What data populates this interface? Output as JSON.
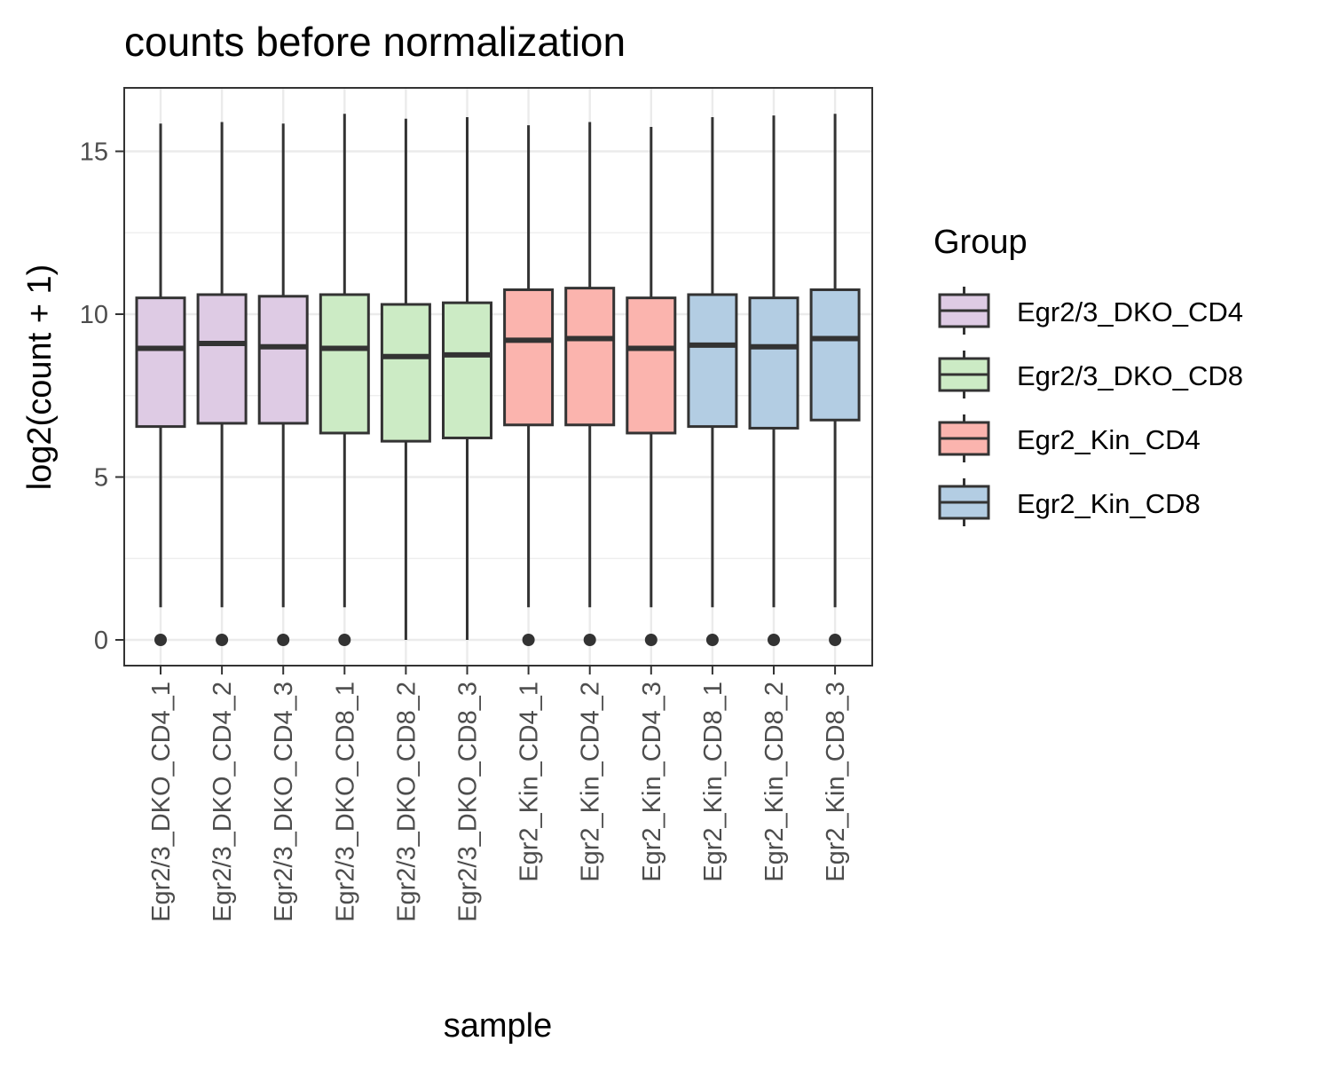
{
  "chart_data": {
    "type": "boxplot",
    "title": "counts before normalization",
    "xlabel": "sample",
    "ylabel": "log2(count + 1)",
    "ylim": [
      -0.8,
      17.0
    ],
    "yticks": [
      0,
      5,
      10,
      15
    ],
    "grid": true,
    "legend": {
      "title": "Group",
      "placement": "right",
      "entries": [
        {
          "name": "Egr2/3_DKO_CD4",
          "color": "#decbe4"
        },
        {
          "name": "Egr2/3_DKO_CD8",
          "color": "#ccebc5"
        },
        {
          "name": "Egr2_Kin_CD4",
          "color": "#fbb4ae"
        },
        {
          "name": "Egr2_Kin_CD8",
          "color": "#b3cde3"
        }
      ]
    },
    "samples": [
      {
        "label": "Egr2/3_DKO_CD4_1",
        "group": 0,
        "lower_whisker": 1.0,
        "q1": 6.55,
        "median": 8.95,
        "q3": 10.5,
        "upper_whisker": 15.85,
        "outliers": [
          0
        ]
      },
      {
        "label": "Egr2/3_DKO_CD4_2",
        "group": 0,
        "lower_whisker": 1.0,
        "q1": 6.65,
        "median": 9.1,
        "q3": 10.6,
        "upper_whisker": 15.9,
        "outliers": [
          0
        ]
      },
      {
        "label": "Egr2/3_DKO_CD4_3",
        "group": 0,
        "lower_whisker": 1.0,
        "q1": 6.65,
        "median": 9.0,
        "q3": 10.55,
        "upper_whisker": 15.85,
        "outliers": [
          0
        ]
      },
      {
        "label": "Egr2/3_DKO_CD8_1",
        "group": 1,
        "lower_whisker": 1.0,
        "q1": 6.35,
        "median": 8.95,
        "q3": 10.6,
        "upper_whisker": 16.15,
        "outliers": [
          0
        ]
      },
      {
        "label": "Egr2/3_DKO_CD8_2",
        "group": 1,
        "lower_whisker": 0.0,
        "q1": 6.1,
        "median": 8.7,
        "q3": 10.3,
        "upper_whisker": 16.0,
        "outliers": []
      },
      {
        "label": "Egr2/3_DKO_CD8_3",
        "group": 1,
        "lower_whisker": 0.0,
        "q1": 6.2,
        "median": 8.75,
        "q3": 10.35,
        "upper_whisker": 16.05,
        "outliers": []
      },
      {
        "label": "Egr2_Kin_CD4_1",
        "group": 2,
        "lower_whisker": 1.0,
        "q1": 6.6,
        "median": 9.2,
        "q3": 10.75,
        "upper_whisker": 15.8,
        "outliers": [
          0
        ]
      },
      {
        "label": "Egr2_Kin_CD4_2",
        "group": 2,
        "lower_whisker": 1.0,
        "q1": 6.6,
        "median": 9.25,
        "q3": 10.8,
        "upper_whisker": 15.9,
        "outliers": [
          0
        ]
      },
      {
        "label": "Egr2_Kin_CD4_3",
        "group": 2,
        "lower_whisker": 1.0,
        "q1": 6.35,
        "median": 8.95,
        "q3": 10.5,
        "upper_whisker": 15.75,
        "outliers": [
          0
        ]
      },
      {
        "label": "Egr2_Kin_CD8_1",
        "group": 3,
        "lower_whisker": 1.0,
        "q1": 6.55,
        "median": 9.05,
        "q3": 10.6,
        "upper_whisker": 16.05,
        "outliers": [
          0
        ]
      },
      {
        "label": "Egr2_Kin_CD8_2",
        "group": 3,
        "lower_whisker": 1.0,
        "q1": 6.5,
        "median": 9.0,
        "q3": 10.5,
        "upper_whisker": 16.1,
        "outliers": [
          0
        ]
      },
      {
        "label": "Egr2_Kin_CD8_3",
        "group": 3,
        "lower_whisker": 1.0,
        "q1": 6.75,
        "median": 9.25,
        "q3": 10.75,
        "upper_whisker": 16.15,
        "outliers": [
          0
        ]
      }
    ]
  }
}
